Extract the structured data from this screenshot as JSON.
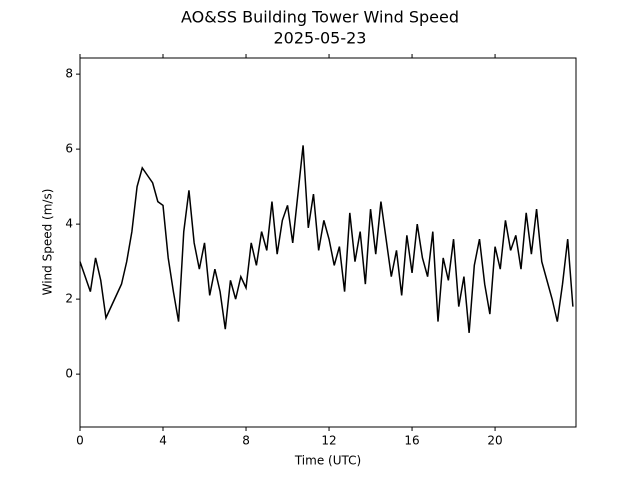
{
  "chart_data": {
    "type": "line",
    "title": "AO&SS Building Tower Wind Speed",
    "subtitle": "2025-05-23",
    "x_label": "Time (UTC)",
    "y_label": "Wind Speed (m/s)",
    "x": [
      0,
      0.25,
      0.5,
      0.75,
      1,
      1.25,
      1.5,
      1.75,
      2,
      2.25,
      2.5,
      2.75,
      3,
      3.25,
      3.5,
      3.75,
      4,
      4.25,
      4.5,
      4.75,
      5,
      5.25,
      5.5,
      5.75,
      6,
      6.25,
      6.5,
      6.75,
      7,
      7.25,
      7.5,
      7.75,
      8,
      8.25,
      8.5,
      8.75,
      9,
      9.25,
      9.5,
      9.75,
      10,
      10.25,
      10.5,
      10.75,
      11,
      11.25,
      11.5,
      11.75,
      12,
      12.25,
      12.5,
      12.75,
      13,
      13.25,
      13.5,
      13.75,
      14,
      14.25,
      14.5,
      14.75,
      15,
      15.25,
      15.5,
      15.75,
      16,
      16.25,
      16.5,
      16.75,
      17,
      17.25,
      17.5,
      17.75,
      18,
      18.25,
      18.5,
      18.75,
      19,
      19.25,
      19.5,
      19.75,
      20,
      20.25,
      20.5,
      20.75,
      21,
      21.25,
      21.5,
      21.75,
      22,
      22.25,
      22.5,
      22.75,
      23,
      23.25,
      23.5,
      23.75
    ],
    "values": [
      3.0,
      2.6,
      2.2,
      3.1,
      2.5,
      1.5,
      1.8,
      2.1,
      2.4,
      3.0,
      3.8,
      5.0,
      5.5,
      5.3,
      5.1,
      4.6,
      4.5,
      3.1,
      2.2,
      1.4,
      3.8,
      4.9,
      3.5,
      2.8,
      3.5,
      2.1,
      2.8,
      2.2,
      1.2,
      2.5,
      2.0,
      2.6,
      2.3,
      3.5,
      2.9,
      3.8,
      3.3,
      4.6,
      3.2,
      4.1,
      4.5,
      3.5,
      4.8,
      6.1,
      3.9,
      4.8,
      3.3,
      4.1,
      3.6,
      2.9,
      3.4,
      2.2,
      4.3,
      3.0,
      3.8,
      2.4,
      4.4,
      3.2,
      4.6,
      3.6,
      2.6,
      3.3,
      2.1,
      3.7,
      2.7,
      4.0,
      3.1,
      2.6,
      3.8,
      1.4,
      3.1,
      2.5,
      3.6,
      1.8,
      2.6,
      1.1,
      2.9,
      3.6,
      2.4,
      1.6,
      3.4,
      2.8,
      4.1,
      3.3,
      3.7,
      2.8,
      4.3,
      3.2,
      4.4,
      3.0,
      2.5,
      2.0,
      1.4,
      2.4,
      3.6,
      1.8
    ],
    "color": "#000000",
    "xlim": [
      0,
      23.9
    ],
    "ylim": [
      -1.41,
      8.43
    ],
    "xticks": [
      0,
      4,
      8,
      12,
      16,
      20
    ],
    "yticks": [
      0,
      2,
      4,
      6,
      8
    ]
  }
}
